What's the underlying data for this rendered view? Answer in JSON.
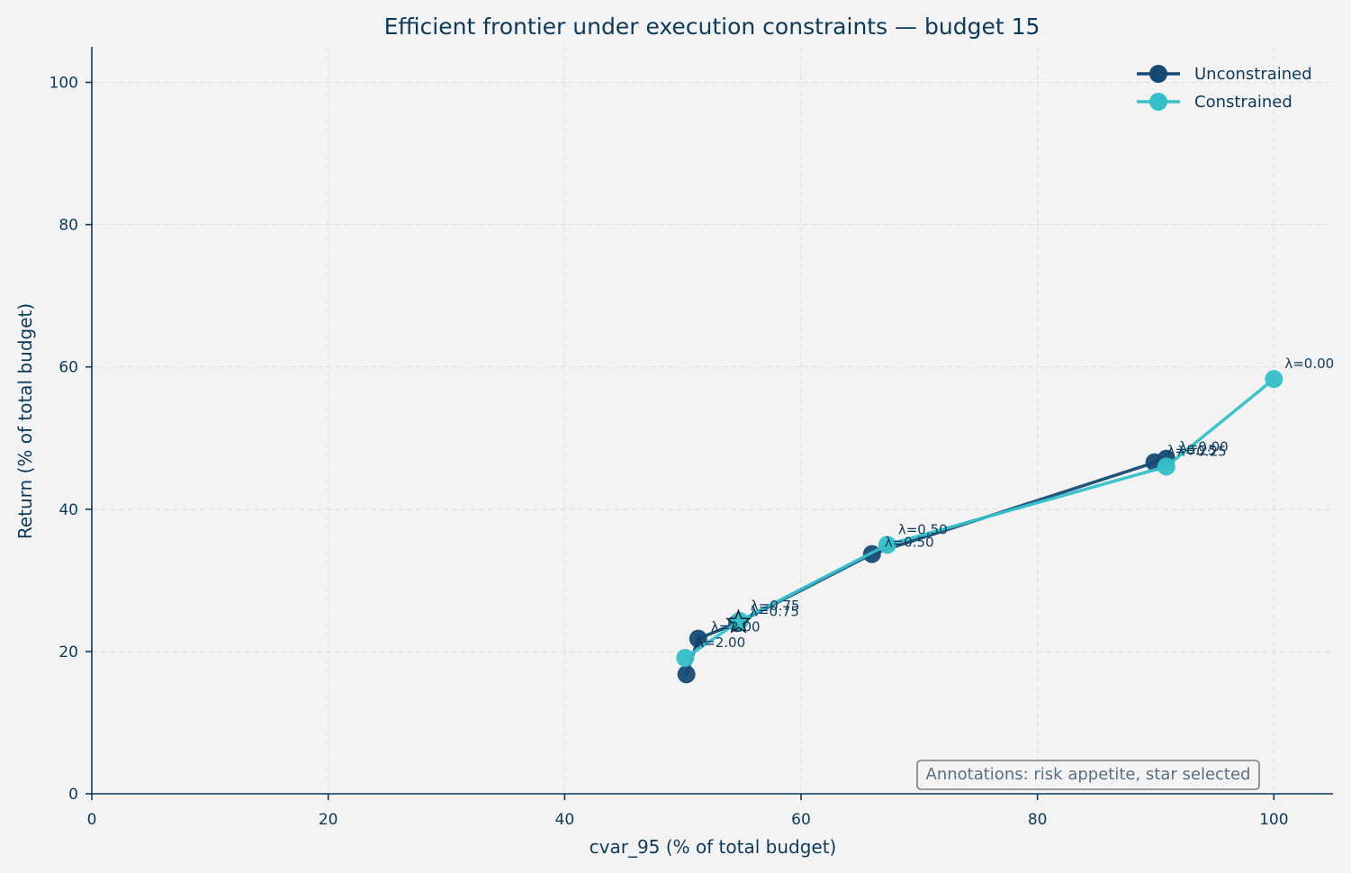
{
  "chart_data": {
    "type": "line",
    "title": "Efficient frontier under execution constraints — budget 15",
    "xlabel": "cvar_95 (% of total budget)",
    "ylabel": "Return (% of total budget)",
    "xlim": [
      0,
      105
    ],
    "ylim": [
      0,
      105
    ],
    "xticks": [
      0,
      20,
      40,
      60,
      80,
      100
    ],
    "yticks": [
      0,
      20,
      40,
      60,
      80,
      100
    ],
    "grid": true,
    "legend_position": "top-right",
    "series": [
      {
        "name": "Unconstrained",
        "color": "#164a73",
        "points": [
          {
            "x": 89.9,
            "y": 46.6,
            "label": "λ=0.25"
          },
          {
            "x": 90.9,
            "y": 47.1,
            "label": "λ=0.00"
          },
          {
            "x": 66.0,
            "y": 33.7,
            "label": "λ=0.50"
          },
          {
            "x": 54.6,
            "y": 24.0,
            "label": "λ=0.75"
          },
          {
            "x": 51.3,
            "y": 21.8,
            "label": "λ=2.00"
          },
          {
            "x": 50.3,
            "y": 16.8,
            "label": ""
          }
        ]
      },
      {
        "name": "Constrained",
        "color": "#36bfc9",
        "points": [
          {
            "x": 100.0,
            "y": 58.3,
            "label": "λ=0.00"
          },
          {
            "x": 90.9,
            "y": 46.0,
            "label": "λ=0.25"
          },
          {
            "x": 67.3,
            "y": 35.0,
            "label": "λ=0.50"
          },
          {
            "x": 54.8,
            "y": 24.3,
            "label": "λ=0.75"
          },
          {
            "x": 50.2,
            "y": 19.1,
            "label": "λ=2.00"
          }
        ]
      }
    ],
    "selected": {
      "x": 54.7,
      "y": 24.1,
      "marker": "star"
    },
    "note": "Annotations: risk appetite, star selected"
  }
}
